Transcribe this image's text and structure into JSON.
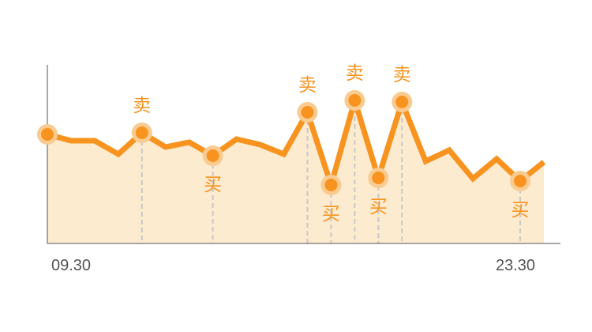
{
  "chart_data": {
    "type": "line",
    "title": "",
    "xlabel": "",
    "ylabel": "",
    "x_tick_labels": [
      "09.30",
      "23.30"
    ],
    "values": [
      170,
      178,
      178,
      195,
      168,
      186,
      180,
      197,
      176,
      183,
      195,
      142,
      234,
      127,
      225,
      129,
      204,
      190,
      226,
      201,
      229,
      205
    ],
    "markers": [
      {
        "index": 0,
        "signal": ""
      },
      {
        "index": 4,
        "signal": "卖"
      },
      {
        "index": 7,
        "signal": "买"
      },
      {
        "index": 11,
        "signal": "卖"
      },
      {
        "index": 12,
        "signal": "买"
      },
      {
        "index": 13,
        "signal": "卖"
      },
      {
        "index": 14,
        "signal": "买"
      },
      {
        "index": 15,
        "signal": "卖"
      },
      {
        "index": 20,
        "signal": "买"
      }
    ],
    "colors": {
      "line": "#F7931E",
      "area": "#FDEBD0",
      "marker_halo": "#F9CB91",
      "guide": "#C8C8C8",
      "axis": "#555555",
      "signal_text": "#F7931E"
    }
  }
}
